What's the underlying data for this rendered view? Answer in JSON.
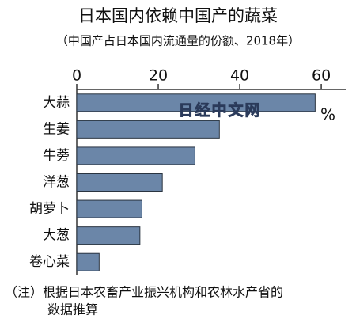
{
  "chart_data": {
    "type": "barh",
    "title": "日本国内依赖中国产的蔬菜",
    "subtitle": "（中国产占日本国内流通量的份额、2018年）",
    "x_label": "%",
    "watermark": "日经中文网",
    "note": [
      "（注）根据日本农畜产业振兴机构和农林水产省的",
      "数据推算"
    ],
    "categories": [
      "大蒜",
      "生姜",
      "牛蒡",
      "洋葱",
      "胡萝卜",
      "大葱",
      "卷心菜"
    ],
    "values": [
      58.5,
      35,
      29,
      21,
      16,
      15.5,
      5.5
    ],
    "color": "#6b86a8",
    "xlim": [
      0,
      66
    ],
    "xticks": [
      0,
      20,
      40,
      60
    ]
  }
}
